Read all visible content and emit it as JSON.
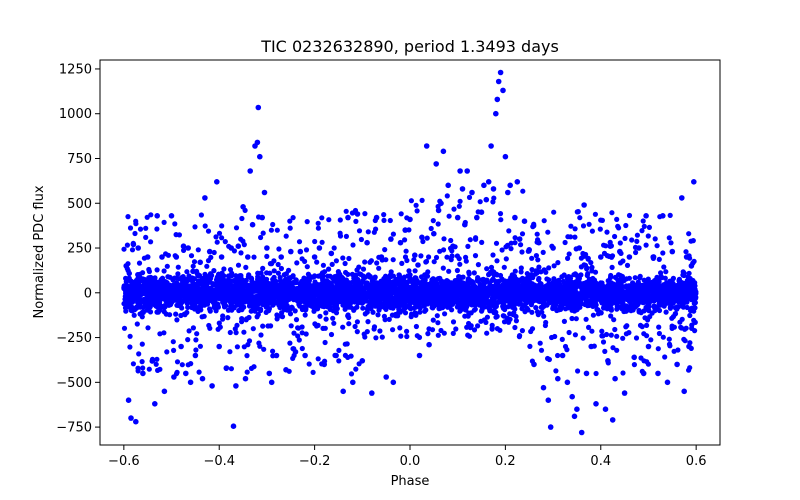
{
  "chart_data": {
    "type": "scatter",
    "title": "TIC 0232632890, period 1.3493 days",
    "xlabel": "Phase",
    "ylabel": "Normalized PDC flux",
    "xlim": [
      -0.65,
      0.65
    ],
    "ylim": [
      -850,
      1300
    ],
    "xticks": [
      -0.6,
      -0.4,
      -0.2,
      0.0,
      0.2,
      0.4,
      0.6
    ],
    "xtick_labels": [
      "−0.6",
      "−0.4",
      "−0.2",
      "0.0",
      "0.2",
      "0.4",
      "0.6"
    ],
    "yticks": [
      -750,
      -500,
      -250,
      0,
      250,
      500,
      750,
      1000,
      1250
    ],
    "ytick_labels": [
      "−750",
      "−500",
      "−250",
      "0",
      "250",
      "500",
      "750",
      "1000",
      "1250"
    ],
    "grid": false,
    "legend": "none",
    "marker_color": "#0000ff",
    "series": [
      {
        "points": [
          [
            -0.595,
            150
          ],
          [
            -0.59,
            -600
          ],
          [
            -0.585,
            -700
          ],
          [
            -0.58,
            270
          ],
          [
            -0.575,
            -720
          ],
          [
            -0.57,
            250
          ],
          [
            -0.56,
            -450
          ],
          [
            -0.55,
            200
          ],
          [
            -0.54,
            -380
          ],
          [
            -0.535,
            -620
          ],
          [
            -0.53,
            430
          ],
          [
            -0.52,
            200
          ],
          [
            -0.515,
            -550
          ],
          [
            -0.5,
            430
          ],
          [
            -0.495,
            -470
          ],
          [
            -0.49,
            200
          ],
          [
            -0.48,
            -300
          ],
          [
            -0.475,
            260
          ],
          [
            -0.47,
            -450
          ],
          [
            -0.465,
            250
          ],
          [
            -0.46,
            -500
          ],
          [
            -0.455,
            120
          ],
          [
            -0.45,
            -350
          ],
          [
            -0.44,
            170
          ],
          [
            -0.435,
            -480
          ],
          [
            -0.43,
            530
          ],
          [
            -0.42,
            230
          ],
          [
            -0.415,
            -520
          ],
          [
            -0.405,
            620
          ],
          [
            -0.4,
            -300
          ],
          [
            -0.395,
            200
          ],
          [
            -0.385,
            -420
          ],
          [
            -0.375,
            250
          ],
          [
            -0.37,
            -745
          ],
          [
            -0.365,
            -520
          ],
          [
            -0.36,
            260
          ],
          [
            -0.35,
            480
          ],
          [
            -0.345,
            -480
          ],
          [
            -0.34,
            200
          ],
          [
            -0.335,
            680
          ],
          [
            -0.33,
            380
          ],
          [
            -0.325,
            820
          ],
          [
            -0.32,
            840
          ],
          [
            -0.318,
            1035
          ],
          [
            -0.315,
            760
          ],
          [
            -0.31,
            420
          ],
          [
            -0.305,
            560
          ],
          [
            -0.3,
            250
          ],
          [
            -0.295,
            -450
          ],
          [
            -0.29,
            -500
          ],
          [
            -0.28,
            -350
          ],
          [
            -0.27,
            200
          ],
          [
            -0.26,
            -430
          ],
          [
            -0.25,
            230
          ],
          [
            -0.24,
            -330
          ],
          [
            -0.23,
            230
          ],
          [
            -0.22,
            -350
          ],
          [
            -0.2,
            200
          ],
          [
            -0.19,
            250
          ],
          [
            -0.18,
            -400
          ],
          [
            -0.165,
            220
          ],
          [
            -0.155,
            -350
          ],
          [
            -0.14,
            -550
          ],
          [
            -0.13,
            420
          ],
          [
            -0.12,
            -500
          ],
          [
            -0.11,
            440
          ],
          [
            -0.1,
            -380
          ],
          [
            -0.09,
            280
          ],
          [
            -0.08,
            -560
          ],
          [
            -0.07,
            420
          ],
          [
            -0.06,
            200
          ],
          [
            -0.05,
            -470
          ],
          [
            -0.04,
            300
          ],
          [
            -0.035,
            -500
          ],
          [
            -0.02,
            280
          ],
          [
            -0.01,
            350
          ],
          [
            0.0,
            410
          ],
          [
            0.01,
            210
          ],
          [
            0.02,
            -350
          ],
          [
            0.025,
            310
          ],
          [
            0.035,
            820
          ],
          [
            0.04,
            -290
          ],
          [
            0.05,
            330
          ],
          [
            0.055,
            720
          ],
          [
            0.06,
            460
          ],
          [
            0.065,
            500
          ],
          [
            0.07,
            790
          ],
          [
            0.08,
            600
          ],
          [
            0.09,
            260
          ],
          [
            0.1,
            420
          ],
          [
            0.105,
            680
          ],
          [
            0.11,
            580
          ],
          [
            0.115,
            380
          ],
          [
            0.12,
            680
          ],
          [
            0.13,
            560
          ],
          [
            0.14,
            420
          ],
          [
            0.15,
            450
          ],
          [
            0.155,
            600
          ],
          [
            0.16,
            520
          ],
          [
            0.165,
            620
          ],
          [
            0.17,
            820
          ],
          [
            0.175,
            580
          ],
          [
            0.18,
            1000
          ],
          [
            0.183,
            1080
          ],
          [
            0.186,
            1180
          ],
          [
            0.19,
            1230
          ],
          [
            0.195,
            1130
          ],
          [
            0.2,
            760
          ],
          [
            0.205,
            560
          ],
          [
            0.21,
            600
          ],
          [
            0.22,
            420
          ],
          [
            0.225,
            620
          ],
          [
            0.23,
            300
          ],
          [
            0.24,
            400
          ],
          [
            0.25,
            240
          ],
          [
            0.26,
            -400
          ],
          [
            0.27,
            280
          ],
          [
            0.28,
            -530
          ],
          [
            0.29,
            -600
          ],
          [
            0.295,
            -750
          ],
          [
            0.3,
            250
          ],
          [
            0.31,
            -480
          ],
          [
            0.32,
            -350
          ],
          [
            0.33,
            -500
          ],
          [
            0.34,
            -580
          ],
          [
            0.345,
            -690
          ],
          [
            0.35,
            -650
          ],
          [
            0.355,
            250
          ],
          [
            0.36,
            -780
          ],
          [
            0.365,
            490
          ],
          [
            0.37,
            -450
          ],
          [
            0.38,
            -300
          ],
          [
            0.39,
            -620
          ],
          [
            0.4,
            200
          ],
          [
            0.41,
            -650
          ],
          [
            0.415,
            -380
          ],
          [
            0.42,
            260
          ],
          [
            0.425,
            -710
          ],
          [
            0.43,
            -480
          ],
          [
            0.44,
            230
          ],
          [
            0.45,
            -560
          ],
          [
            0.46,
            200
          ],
          [
            0.47,
            -360
          ],
          [
            0.48,
            250
          ],
          [
            0.49,
            -450
          ],
          [
            0.495,
            430
          ],
          [
            0.5,
            -300
          ],
          [
            0.51,
            200
          ],
          [
            0.52,
            -450
          ],
          [
            0.53,
            430
          ],
          [
            0.54,
            -500
          ],
          [
            0.55,
            230
          ],
          [
            0.56,
            -400
          ],
          [
            0.57,
            530
          ],
          [
            0.575,
            -550
          ],
          [
            0.58,
            200
          ],
          [
            0.585,
            -300
          ],
          [
            0.59,
            150
          ],
          [
            0.595,
            620
          ]
        ]
      }
    ]
  }
}
